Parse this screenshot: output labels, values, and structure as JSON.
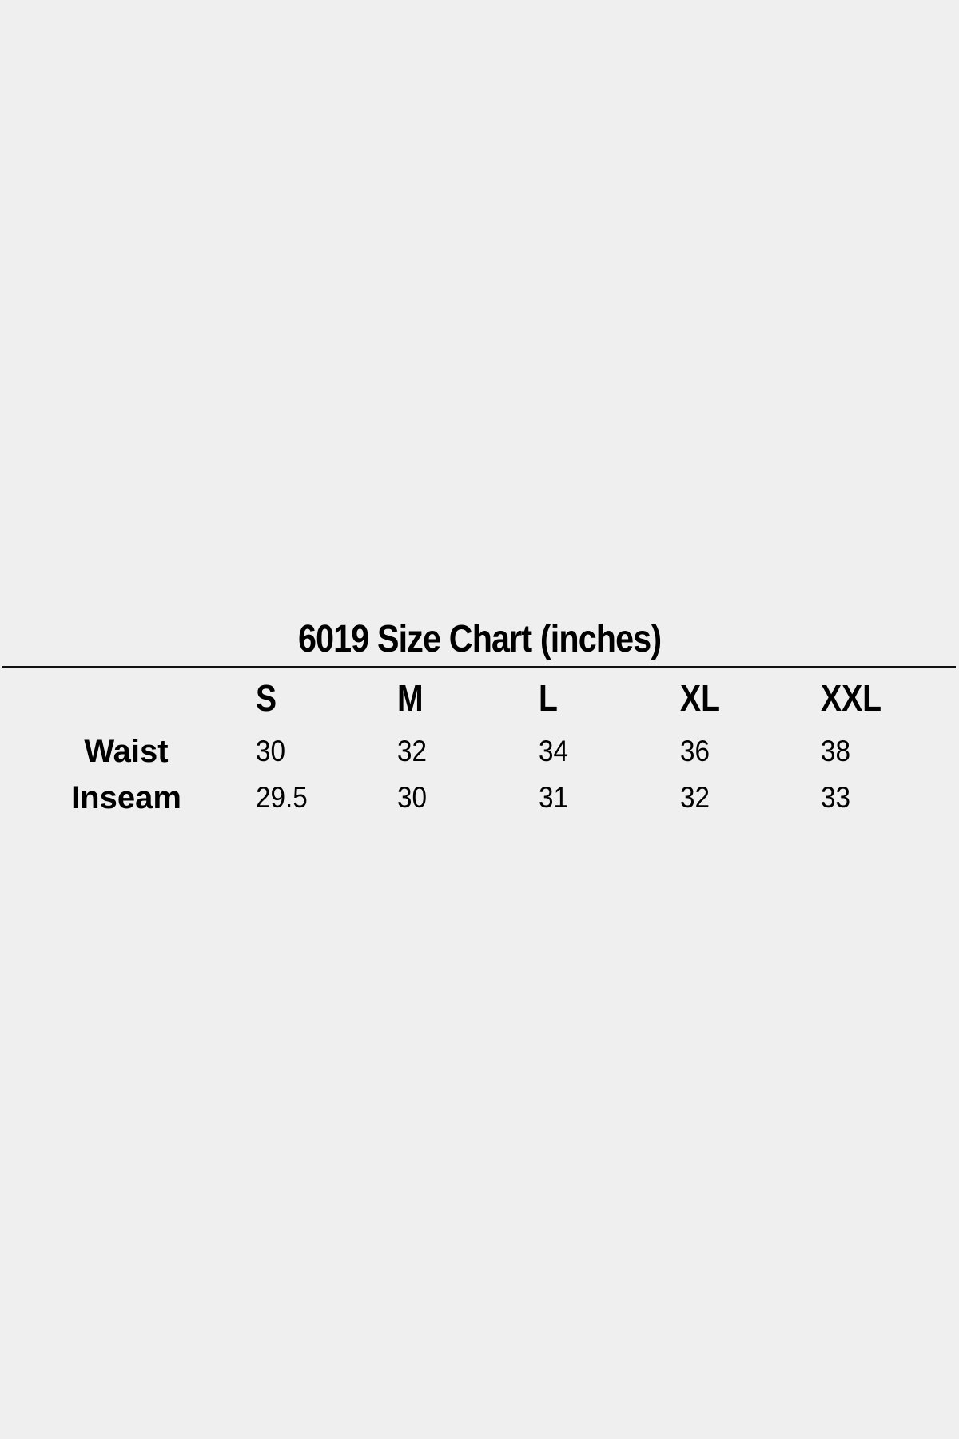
{
  "title": "6019 Size Chart (inches)",
  "sizes": [
    "S",
    "M",
    "L",
    "XL",
    "XXL"
  ],
  "rows": [
    {
      "label": "Waist",
      "values": [
        "30",
        "32",
        "34",
        "36",
        "38"
      ]
    },
    {
      "label": "Inseam",
      "values": [
        "29.5",
        "30",
        "31",
        "32",
        "33"
      ]
    }
  ]
}
